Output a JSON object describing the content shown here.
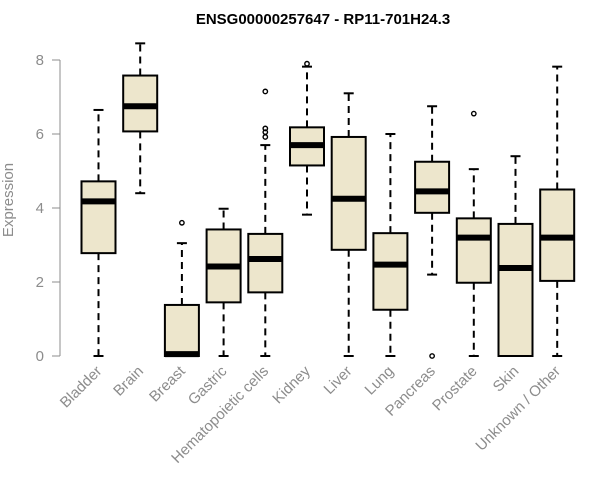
{
  "chart_data": {
    "type": "boxplot",
    "title": "ENSG00000257647 - RP11-701H24.3",
    "xlabel": "",
    "ylabel": "Expression",
    "ylim": [
      0,
      8
    ],
    "yticks": [
      0,
      2,
      4,
      6,
      8
    ],
    "colors": {
      "box_fill": "#ede6cc",
      "stroke": "#000000",
      "axis": "#8c8c8c"
    },
    "categories": [
      "Bladder",
      "Brain",
      "Breast",
      "Gastric",
      "Hematopoietic cells",
      "Kidney",
      "Liver",
      "Lung",
      "Pancreas",
      "Prostate",
      "Skin",
      "Unknown / Other"
    ],
    "boxes": [
      {
        "name": "Bladder",
        "min": 0.0,
        "q1": 2.78,
        "median": 4.18,
        "q3": 4.72,
        "max": 6.65,
        "outliers": []
      },
      {
        "name": "Brain",
        "min": 4.4,
        "q1": 6.07,
        "median": 6.75,
        "q3": 7.58,
        "max": 8.45,
        "outliers": []
      },
      {
        "name": "Breast",
        "min": 0.0,
        "q1": 0.0,
        "median": 0.05,
        "q3": 1.38,
        "max": 3.05,
        "outliers": [
          3.6
        ]
      },
      {
        "name": "Gastric",
        "min": 0.0,
        "q1": 1.45,
        "median": 2.42,
        "q3": 3.42,
        "max": 3.98,
        "outliers": []
      },
      {
        "name": "Hematopoietic cells",
        "min": 0.0,
        "q1": 1.72,
        "median": 2.62,
        "q3": 3.3,
        "max": 5.7,
        "outliers": [
          5.92,
          6.05,
          6.15,
          7.15
        ]
      },
      {
        "name": "Kidney",
        "min": 3.82,
        "q1": 5.15,
        "median": 5.7,
        "q3": 6.18,
        "max": 7.82,
        "outliers": [
          7.9
        ]
      },
      {
        "name": "Liver",
        "min": 0.0,
        "q1": 2.87,
        "median": 4.25,
        "q3": 5.92,
        "max": 7.1,
        "outliers": []
      },
      {
        "name": "Lung",
        "min": 0.0,
        "q1": 1.25,
        "median": 2.47,
        "q3": 3.32,
        "max": 6.0,
        "outliers": []
      },
      {
        "name": "Pancreas",
        "min": 2.2,
        "q1": 3.87,
        "median": 4.45,
        "q3": 5.25,
        "max": 6.75,
        "outliers": [
          0.0
        ]
      },
      {
        "name": "Prostate",
        "min": 0.0,
        "q1": 1.98,
        "median": 3.2,
        "q3": 3.72,
        "max": 5.05,
        "outliers": [
          6.55
        ]
      },
      {
        "name": "Skin",
        "min": 0.0,
        "q1": 0.0,
        "median": 2.38,
        "q3": 3.57,
        "max": 5.4,
        "outliers": []
      },
      {
        "name": "Unknown / Other",
        "min": 0.0,
        "q1": 2.03,
        "median": 3.2,
        "q3": 4.5,
        "max": 7.82,
        "outliers": []
      }
    ]
  }
}
